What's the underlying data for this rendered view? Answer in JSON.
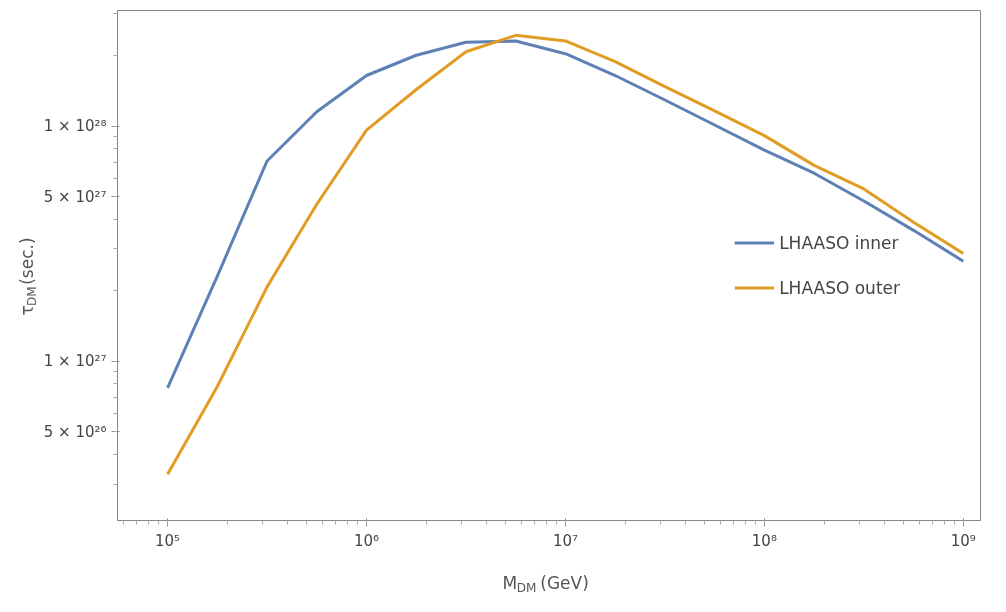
{
  "chart_data": {
    "type": "line",
    "xlabel": "M$_{DM}$(GeV)",
    "ylabel": "τ$_{DM}$(sec.)",
    "log": "xy",
    "grid": false,
    "legend": "right",
    "line_style": "solid",
    "marker": "none",
    "x": [
      100000,
      177828,
      316228,
      562341,
      1000000,
      1778279,
      3162278,
      5623413,
      10000000,
      17782794,
      31622777,
      56234133,
      100000000,
      177827941,
      316227766,
      562341325,
      1000000000
    ],
    "series": [
      {
        "name": "LHAASO inner",
        "color": "#5e81b5",
        "values": [
          7.7e+26,
          2.3e+27,
          7.1e+27,
          1.15e+28,
          1.64e+28,
          2e+28,
          2.27e+28,
          2.3e+28,
          2.03e+28,
          1.64e+28,
          1.29e+28,
          1.01e+28,
          7.9e+27,
          6.3e+27,
          4.8e+27,
          3.6e+27,
          2.66e+27
        ]
      },
      {
        "name": "LHAASO outer",
        "color": "#e19c24",
        "values": [
          3.3e+26,
          7.8e+26,
          2.07e+27,
          4.65e+27,
          9.6e+27,
          1.43e+28,
          2.07e+28,
          2.43e+28,
          2.3e+28,
          1.88e+28,
          1.47e+28,
          1.16e+28,
          9.1e+27,
          6.8e+27,
          5.4e+27,
          3.9e+27,
          2.87e+27
        ]
      }
    ],
    "xlim": [
      56000,
      1220000000.0
    ],
    "ylim": [
      2.1e+26,
      3.1e+28
    ],
    "xticks": [
      {
        "value": 100000,
        "label": "10⁵"
      },
      {
        "value": 1000000,
        "label": "10⁶"
      },
      {
        "value": 10000000,
        "label": "10⁷"
      },
      {
        "value": 100000000,
        "label": "10⁸"
      },
      {
        "value": 1000000000,
        "label": "10⁹"
      }
    ],
    "yticks": [
      {
        "value": 5e+26,
        "label": "5 × 10²⁶"
      },
      {
        "value": 1e+27,
        "label": "1 × 10²⁷"
      },
      {
        "value": 5e+27,
        "label": "5 × 10²⁷"
      },
      {
        "value": 1e+28,
        "label": "1 × 10²⁸"
      }
    ]
  }
}
